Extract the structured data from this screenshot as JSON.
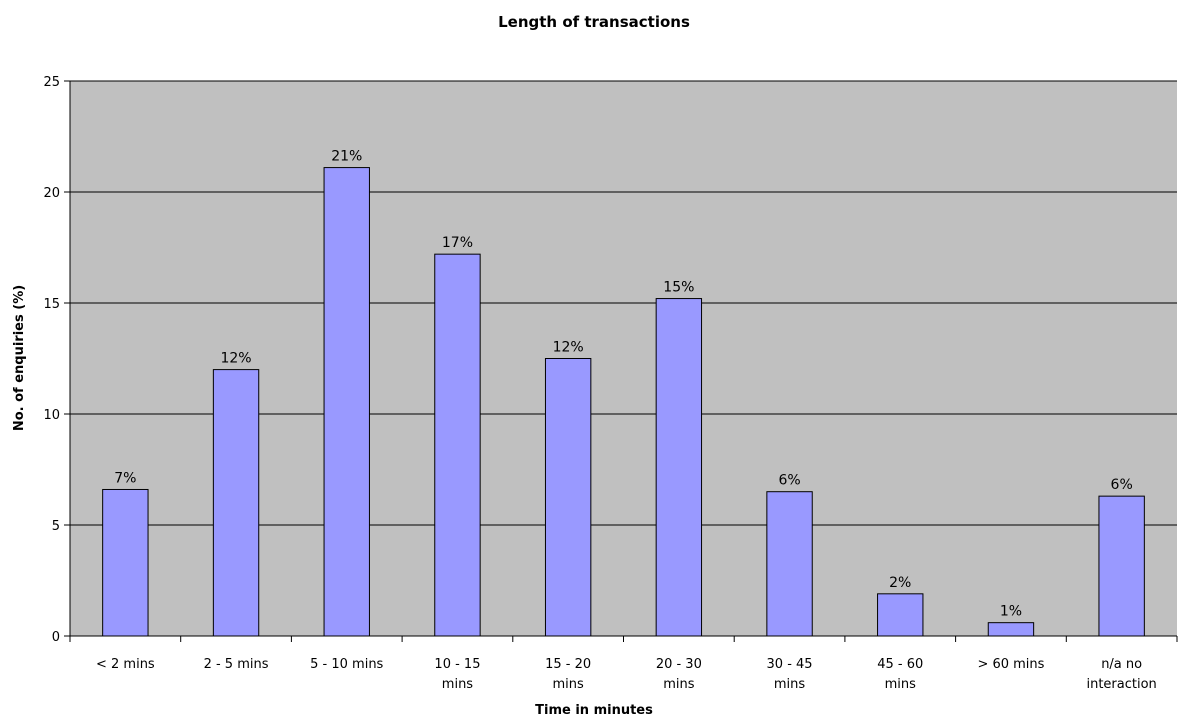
{
  "chart_data": {
    "type": "bar",
    "title": "Length of transactions",
    "xlabel": "Time in minutes",
    "ylabel": "No. of enquiries (%)",
    "ylim": [
      0,
      25
    ],
    "yticks": [
      "0",
      "5",
      "10",
      "15",
      "20",
      "25"
    ],
    "grid": true,
    "legend": "none",
    "categories": [
      [
        "< 2 mins"
      ],
      [
        "2 - 5 mins"
      ],
      [
        "5 - 10 mins"
      ],
      [
        "10 - 15",
        "mins"
      ],
      [
        "15 - 20",
        "mins"
      ],
      [
        "20 - 30",
        "mins"
      ],
      [
        "30 - 45",
        "mins"
      ],
      [
        "45 - 60",
        "mins"
      ],
      [
        "> 60 mins"
      ],
      [
        "n/a no",
        "interaction"
      ]
    ],
    "values": [
      6.6,
      12.0,
      21.1,
      17.2,
      12.5,
      15.2,
      6.5,
      1.9,
      0.6,
      6.3
    ],
    "data_labels": [
      "7%",
      "12%",
      "21%",
      "17%",
      "12%",
      "15%",
      "6%",
      "2%",
      "1%",
      "6%"
    ],
    "colors": {
      "bar_fill": "#9999FF",
      "bar_stroke": "#000000",
      "plot_bg": "#C0C0C0",
      "gridline": "#000000"
    }
  }
}
